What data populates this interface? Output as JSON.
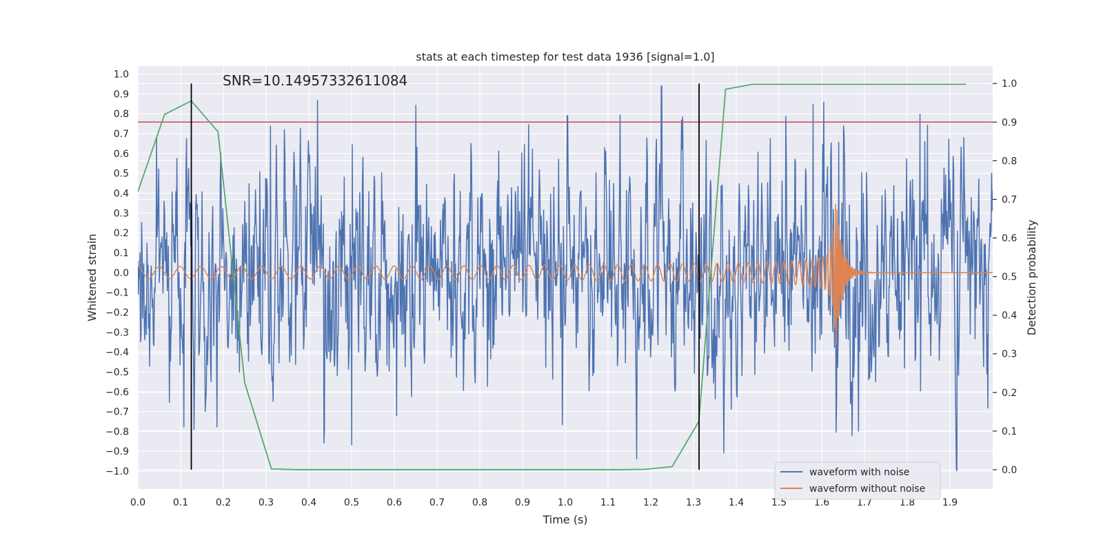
{
  "chart_data": {
    "type": "line",
    "title": "stats at each timestep for test data 1936 [signal=1.0]",
    "xlabel": "Time (s)",
    "ylabel": "Whitened strain",
    "y2label": "Detection probability",
    "xlim": [
      0,
      2.0
    ],
    "ylim": [
      -1.09,
      1.04
    ],
    "y2lim": [
      -0.05,
      1.045
    ],
    "xticks": [
      "0.0",
      "0.1",
      "0.2",
      "0.3",
      "0.4",
      "0.5",
      "0.6",
      "0.7",
      "0.8",
      "0.9",
      "1.0",
      "1.1",
      "1.2",
      "1.3",
      "1.4",
      "1.5",
      "1.6",
      "1.7",
      "1.8",
      "1.9"
    ],
    "yticks": [
      "1.0",
      "0.9",
      "0.8",
      "0.7",
      "0.6",
      "0.5",
      "0.4",
      "0.3",
      "0.2",
      "0.1",
      "0.0",
      "−0.1",
      "−0.2",
      "−0.3",
      "−0.4",
      "−0.5",
      "−0.6",
      "−0.7",
      "−0.8",
      "−0.9",
      "−1.0"
    ],
    "y2ticks": [
      "1.0",
      "0.9",
      "0.8",
      "0.7",
      "0.6",
      "0.5",
      "0.4",
      "0.3",
      "0.2",
      "0.1",
      "0.0"
    ],
    "annotation": "SNR=10.14957332611084",
    "threshold": 0.9,
    "vlines": [
      0.125,
      1.313
    ],
    "noise": {
      "name": "waveform with noise",
      "color": "#4c72b0",
      "t_range": [
        0,
        2.0
      ],
      "n_samples": 1600,
      "std": 0.24,
      "y_range": [
        -1.0,
        0.94
      ],
      "peaks": [
        [
          0.42,
          0.87
        ],
        [
          1.225,
          0.94
        ],
        [
          1.005,
          0.79
        ],
        [
          0.31,
          0.74
        ],
        [
          1.915,
          -0.99
        ],
        [
          0.108,
          -0.78
        ],
        [
          0.435,
          -0.86
        ],
        [
          0.5,
          -0.87
        ],
        [
          1.83,
          0.8
        ],
        [
          1.58,
          0.85
        ],
        [
          1.605,
          0.86
        ]
      ]
    },
    "signal": {
      "name": "waveform without noise",
      "color": "#dd8452",
      "t_range": [
        0,
        2.0
      ],
      "n_samples": 2400,
      "merger_time": 1.632,
      "start_freq": 20,
      "start_amp": 0.03,
      "peak_amp": 0.42,
      "ringdown_tau": 0.015
    },
    "probability": {
      "name": "Detection probability",
      "color": "#55a868",
      "axis": "right",
      "x": [
        0.0,
        0.0625,
        0.125,
        0.1875,
        0.25,
        0.3125,
        0.375,
        0.4375,
        0.5,
        0.5625,
        0.625,
        0.6875,
        0.75,
        0.8125,
        0.875,
        0.9375,
        1.0,
        1.0625,
        1.125,
        1.1875,
        1.25,
        1.3125,
        1.375,
        1.4375,
        1.5,
        1.5625,
        1.625,
        1.6875,
        1.75,
        1.8125,
        1.875,
        1.9375
      ],
      "y": [
        0.72,
        0.92,
        0.955,
        0.875,
        0.225,
        0.002,
        0.0,
        0.0,
        0.0,
        0.0,
        0.0,
        0.0,
        0.0,
        0.0,
        0.0,
        0.0,
        0.0,
        0.0,
        0.0,
        0.001,
        0.008,
        0.125,
        0.985,
        0.998,
        0.998,
        0.998,
        0.998,
        0.998,
        0.998,
        0.998,
        0.998,
        0.998
      ]
    },
    "threshold_color": "#c44e52",
    "legend_position": "lower-right",
    "legend": [
      "waveform with noise",
      "waveform without noise"
    ],
    "grid": true
  }
}
